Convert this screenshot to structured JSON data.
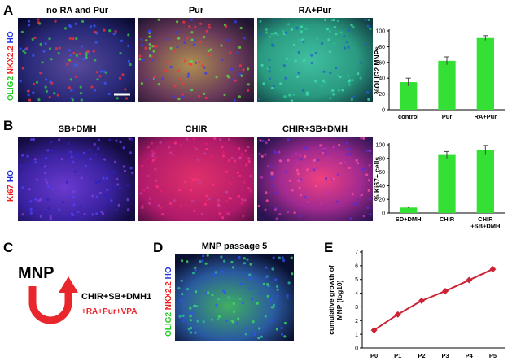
{
  "panel_labels": [
    "A",
    "B",
    "C",
    "D",
    "E"
  ],
  "row_a": {
    "titles": [
      "no RA and Pur",
      "Pur",
      "RA+Pur"
    ],
    "stain": [
      {
        "text": "OLIG2",
        "color": "#22cc22"
      },
      {
        "text": "NKX2.2",
        "color": "#ee2222"
      },
      {
        "text": "HO",
        "color": "#2233dd"
      }
    ]
  },
  "row_b": {
    "titles": [
      "SB+DMH",
      "CHIR",
      "CHIR+SB+DMH"
    ],
    "stain": [
      {
        "text": "Ki67",
        "color": "#ee2222"
      },
      {
        "text": "HO",
        "color": "#2233dd"
      }
    ]
  },
  "panel_c": {
    "cell": "MNP",
    "conditions": "CHIR+SB+DMH1",
    "supplements": "+RA+Pur+VPA"
  },
  "panel_d": {
    "title": "MNP passage 5",
    "stain": [
      {
        "text": "OLIG2",
        "color": "#22cc22"
      },
      {
        "text": "NKX2.2",
        "color": "#ee2222"
      },
      {
        "text": "HO",
        "color": "#2233dd"
      }
    ]
  },
  "chart_data": [
    {
      "type": "bar",
      "y_label": "%OLIG2 MNPs",
      "categories": [
        "control",
        "Pur",
        "RA+Pur"
      ],
      "values": [
        35,
        62,
        91
      ],
      "errors": [
        5,
        5,
        3
      ],
      "color": "#33e033",
      "ylim": [
        0,
        100
      ],
      "yticks": [
        0,
        20,
        40,
        60,
        80,
        100
      ]
    },
    {
      "type": "bar",
      "y_label": "% Ki67+ cells",
      "categories": [
        "SD+DMH",
        "CHIR",
        "CHIR\n+SB+DMH"
      ],
      "values": [
        8,
        85,
        92
      ],
      "errors": [
        1,
        5,
        7
      ],
      "color": "#33e033",
      "ylim": [
        0,
        100
      ],
      "yticks": [
        0,
        20,
        40,
        60,
        80,
        100
      ]
    },
    {
      "type": "line",
      "y_label": "cumulative growth of\nMNP (log10)",
      "categories": [
        "P0",
        "P1",
        "P2",
        "P3",
        "P4",
        "P5"
      ],
      "values": [
        1.3,
        2.45,
        3.45,
        4.15,
        4.95,
        5.75
      ],
      "color": "#cc2233",
      "ylim": [
        0,
        7
      ],
      "yticks": [
        0,
        1,
        2,
        3,
        4,
        5,
        6,
        7
      ]
    }
  ]
}
